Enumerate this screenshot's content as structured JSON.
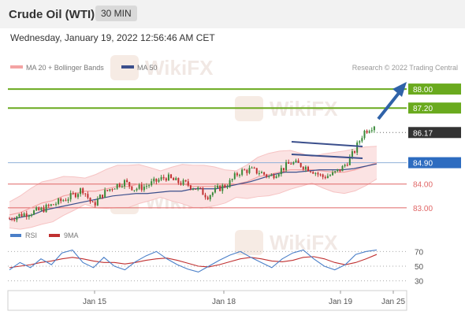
{
  "header": {
    "title": "Crude Oil (WTI)",
    "interval": "30 MIN"
  },
  "datetime": "Wednesday, January 19, 2022 12:56:46 AM CET",
  "legend": {
    "ma20_bb": "MA 20 + Bollinger Bands",
    "ma50": "MA 50"
  },
  "credit": "Research © 2022 Trading Central",
  "watermark": "WikiFX",
  "colors": {
    "ma20": "#f4a3a3",
    "ma50": "#3b4f8c",
    "bollinger_fill": "#fbe3e3",
    "resistance": "#6aaa1e",
    "support": "#e06666",
    "pivot": "#8fb0d8",
    "current_tag": "#333333",
    "pivot_tag": "#2d6cc0",
    "arrow": "#2f62a8",
    "candle_up": "#3a8a3a",
    "candle_down": "#c03030",
    "rsi": "#4a7fc8",
    "rsi_ma": "#c03030"
  },
  "chart_data": [
    {
      "type": "candlestick",
      "ylim": [
        82.2,
        88.6
      ],
      "x_tick_labels": [
        "Jan 15",
        "Jan 18",
        "Jan 19",
        "Jan 25"
      ],
      "levels": [
        {
          "value": 88.0,
          "label": "88.00",
          "kind": "resistance"
        },
        {
          "value": 87.2,
          "label": "87.20",
          "kind": "resistance"
        },
        {
          "value": 86.17,
          "label": "86.17",
          "kind": "current"
        },
        {
          "value": 84.9,
          "label": "84.90",
          "kind": "pivot"
        },
        {
          "value": 84.0,
          "label": "84.00",
          "kind": "support"
        },
        {
          "value": 83.0,
          "label": "83.00",
          "kind": "support"
        }
      ],
      "close_path": [
        82.55,
        82.7,
        82.8,
        82.9,
        83.1,
        83.3,
        83.5,
        83.8,
        83.1,
        83.6,
        83.9,
        84.1,
        83.8,
        83.9,
        84.1,
        84.3,
        84.1,
        84.0,
        83.8,
        83.5,
        83.8,
        84.0,
        84.5,
        84.6,
        84.5,
        84.3,
        84.6,
        84.9,
        84.8,
        84.6,
        84.3,
        84.4,
        84.7,
        85.3,
        86.2,
        86.5
      ],
      "series": [
        {
          "name": "MA 20 + Bollinger Bands",
          "values": [
            82.7,
            82.8,
            83.0,
            83.2,
            83.3,
            83.5,
            83.6,
            83.7,
            83.7,
            83.8,
            83.9,
            83.9,
            84.0,
            84.0,
            84.0,
            84.0,
            84.0,
            83.9,
            83.9,
            83.9,
            83.9,
            84.0,
            84.1,
            84.3,
            84.4,
            84.5,
            84.6,
            84.6,
            84.6,
            84.55,
            84.5,
            84.5,
            84.6,
            84.75,
            84.9
          ]
        },
        {
          "name": "MA 50",
          "values": [
            82.5,
            82.6,
            82.7,
            82.9,
            83.0,
            83.1,
            83.2,
            83.3,
            83.4,
            83.5,
            83.55,
            83.6,
            83.6,
            83.65,
            83.7,
            83.7,
            83.8,
            83.8,
            83.8,
            83.9,
            84.0,
            84.1,
            84.25,
            84.4,
            84.5,
            84.5,
            84.55,
            84.6,
            84.6,
            84.6,
            84.65,
            84.75,
            84.85
          ]
        }
      ]
    },
    {
      "type": "line",
      "legend": [
        "RSI",
        "9MA"
      ],
      "y_tick_labels": [
        "70",
        "50",
        "30"
      ],
      "y_ticks": [
        70,
        50,
        30
      ],
      "ylim": [
        20,
        80
      ],
      "series": [
        {
          "name": "RSI",
          "values": [
            45,
            55,
            48,
            60,
            52,
            68,
            72,
            55,
            48,
            62,
            50,
            45,
            56,
            64,
            70,
            60,
            52,
            46,
            42,
            50,
            58,
            65,
            70,
            62,
            55,
            48,
            60,
            68,
            72,
            60,
            50,
            45,
            52,
            66,
            70,
            72
          ]
        },
        {
          "name": "9MA",
          "values": [
            48,
            50,
            52,
            55,
            57,
            60,
            62,
            60,
            57,
            55,
            55,
            53,
            55,
            58,
            60,
            61,
            58,
            54,
            50,
            49,
            52,
            56,
            60,
            62,
            60,
            57,
            56,
            58,
            62,
            63,
            60,
            55,
            52,
            55,
            60,
            66
          ]
        }
      ]
    }
  ]
}
